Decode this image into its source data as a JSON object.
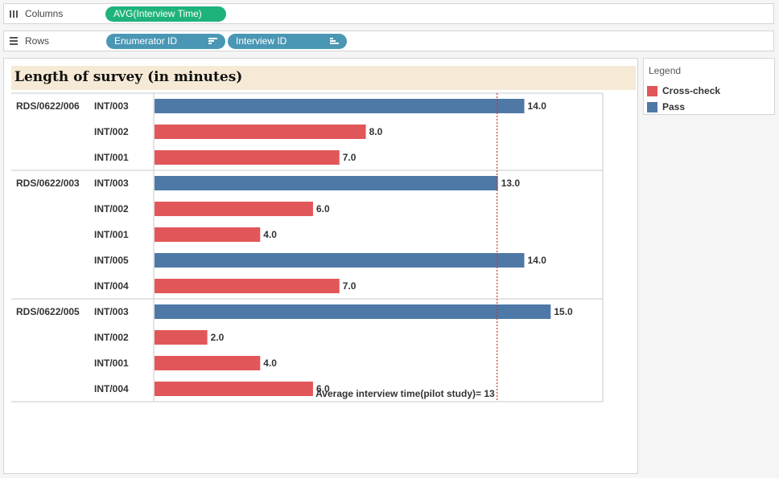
{
  "shelves": {
    "columns": {
      "label": "Columns",
      "pill": "AVG(Interview Time)"
    },
    "rows": {
      "label": "Rows",
      "pills": [
        "Enumerator ID",
        "Interview ID"
      ]
    }
  },
  "legend": {
    "title": "Legend",
    "items": [
      {
        "label": "Cross-check",
        "color": "#e15759"
      },
      {
        "label": "Pass",
        "color": "#4e79a7"
      }
    ]
  },
  "chart_data": {
    "type": "bar",
    "orientation": "horizontal",
    "title": "Length of survey (in minutes)",
    "xlim": [
      0,
      17
    ],
    "groups": [
      {
        "name": "RDS/0622/006",
        "rows": [
          {
            "label": "INT/003",
            "value": 14.0,
            "value_label": "14.0",
            "status": "Pass"
          },
          {
            "label": "INT/002",
            "value": 8.0,
            "value_label": "8.0",
            "status": "Cross-check"
          },
          {
            "label": "INT/001",
            "value": 7.0,
            "value_label": "7.0",
            "status": "Cross-check"
          }
        ]
      },
      {
        "name": "RDS/0622/003",
        "rows": [
          {
            "label": "INT/003",
            "value": 13.0,
            "value_label": "13.0",
            "status": "Pass"
          },
          {
            "label": "INT/002",
            "value": 6.0,
            "value_label": "6.0",
            "status": "Cross-check"
          },
          {
            "label": "INT/001",
            "value": 4.0,
            "value_label": "4.0",
            "status": "Cross-check"
          },
          {
            "label": "INT/005",
            "value": 14.0,
            "value_label": "14.0",
            "status": "Pass"
          },
          {
            "label": "INT/004",
            "value": 7.0,
            "value_label": "7.0",
            "status": "Cross-check"
          }
        ]
      },
      {
        "name": "RDS/0622/005",
        "rows": [
          {
            "label": "INT/003",
            "value": 15.0,
            "value_label": "15.0",
            "status": "Pass"
          },
          {
            "label": "INT/002",
            "value": 2.0,
            "value_label": "2.0",
            "status": "Cross-check"
          },
          {
            "label": "INT/001",
            "value": 4.0,
            "value_label": "4.0",
            "status": "Cross-check"
          },
          {
            "label": "INT/004",
            "value": 6.0,
            "value_label": "6.0",
            "status": "Cross-check"
          }
        ]
      }
    ],
    "reference_line": {
      "value": 13,
      "label": "Average interview time(pilot study)= 13",
      "color": "#c0392b"
    },
    "status_colors": {
      "Pass": "#4e79a7",
      "Cross-check": "#e15759"
    }
  }
}
